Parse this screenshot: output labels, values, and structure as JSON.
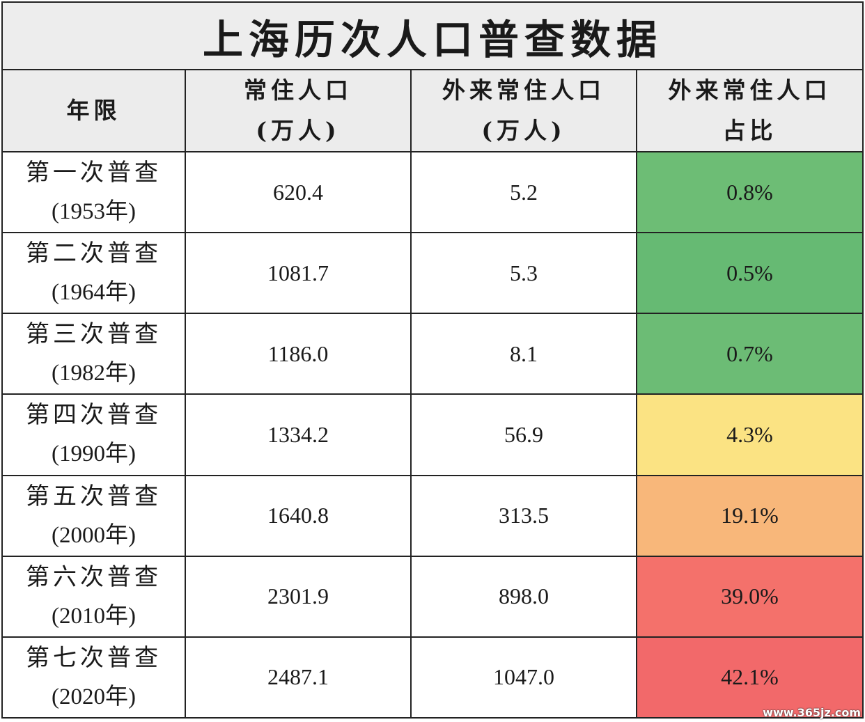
{
  "chart_data": {
    "type": "table",
    "title": "上海历次人口普查数据",
    "columns": [
      {
        "line1": "年限",
        "line2": ""
      },
      {
        "line1": "常住人口",
        "line2": "(万人)"
      },
      {
        "line1": "外来常住人口",
        "line2": "(万人)"
      },
      {
        "line1": "外来常住人口",
        "line2": "占比"
      }
    ],
    "rows": [
      {
        "census": "第一次普查",
        "year": "(1953年)",
        "resident": "620.4",
        "migrant": "5.2",
        "share": "0.8%",
        "share_value": 0.8,
        "color": "#6dbd75"
      },
      {
        "census": "第二次普查",
        "year": "(1964年)",
        "resident": "1081.7",
        "migrant": "5.3",
        "share": "0.5%",
        "share_value": 0.5,
        "color": "#66ba73"
      },
      {
        "census": "第三次普查",
        "year": "(1982年)",
        "resident": "1186.0",
        "migrant": "8.1",
        "share": "0.7%",
        "share_value": 0.7,
        "color": "#6cbc75"
      },
      {
        "census": "第四次普查",
        "year": "(1990年)",
        "resident": "1334.2",
        "migrant": "56.9",
        "share": "4.3%",
        "share_value": 4.3,
        "color": "#fbe383"
      },
      {
        "census": "第五次普查",
        "year": "(2000年)",
        "resident": "1640.8",
        "migrant": "313.5",
        "share": "19.1%",
        "share_value": 19.1,
        "color": "#f8b77a"
      },
      {
        "census": "第六次普查",
        "year": "(2010年)",
        "resident": "2301.9",
        "migrant": "898.0",
        "share": "39.0%",
        "share_value": 39.0,
        "color": "#f4716b"
      },
      {
        "census": "第七次普查",
        "year": "(2020年)",
        "resident": "2487.1",
        "migrant": "1047.0",
        "share": "42.1%",
        "share_value": 42.1,
        "color": "#f2696a"
      }
    ]
  },
  "watermark": "www.365jz.com"
}
